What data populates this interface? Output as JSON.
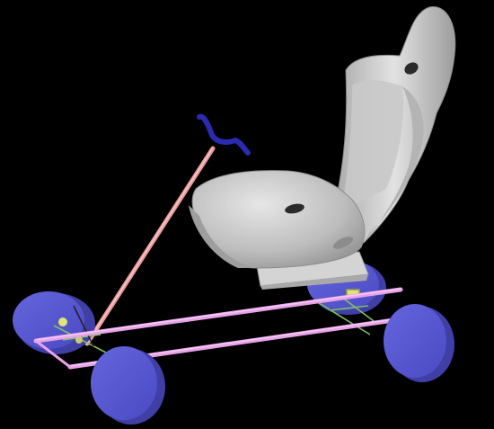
{
  "scene": {
    "background": "#000000",
    "colors": {
      "wheel": "#5a5ad2",
      "wheel_shadow": "#3f3fa6",
      "rail": "#e8a3e8",
      "rail_highlight": "#f4c9f4",
      "steering_column": "#e89a9a",
      "handlebar": "#2b2bb0",
      "seat": "#cfcfcf",
      "seat_shadow": "#9c9c9c",
      "seat_mount": "#d9d9d9",
      "linkage": "#7fbf5f",
      "linkage_accent": "#e2e27a"
    },
    "objects": [
      "racing-seat",
      "steering-column",
      "handlebar",
      "front-left-wheel",
      "front-right-wheel",
      "rear-left-wheel",
      "rear-right-wheel",
      "chassis-rails",
      "front-axle-linkage",
      "rear-axle-linkage"
    ]
  }
}
